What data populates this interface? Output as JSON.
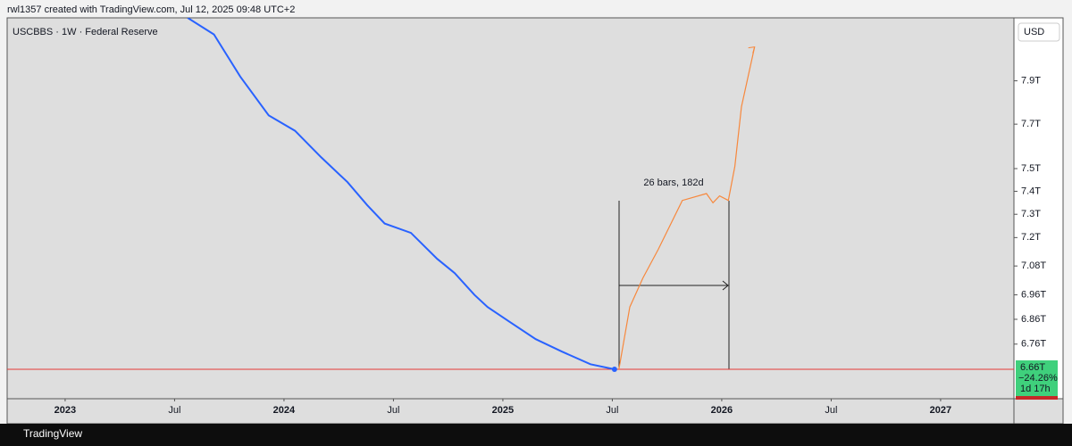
{
  "header": "rwl1357 created with TradingView.com, Jul 12, 2025 09:48 UTC+2",
  "footer": "TradingView",
  "chart_data": {
    "type": "line",
    "title": "USCBBS · 1W · Federal Reserve",
    "currency": "USD",
    "log_scale": true,
    "grid": false,
    "series": [
      {
        "color": "#2962ff",
        "x": [
          2023.56,
          2023.68,
          2023.8,
          2023.93,
          2024.05,
          2024.17,
          2024.29,
          2024.38,
          2024.46,
          2024.58,
          2024.7,
          2024.78,
          2024.87,
          2024.93,
          2025.03,
          2025.15,
          2025.27,
          2025.4,
          2025.51
        ],
        "values": [
          8.2,
          8.12,
          7.92,
          7.74,
          7.67,
          7.55,
          7.44,
          7.34,
          7.26,
          7.22,
          7.11,
          7.05,
          6.96,
          6.91,
          6.85,
          6.78,
          6.73,
          6.68,
          6.66
        ]
      },
      {
        "color": "#f7883d",
        "x": [
          2025.53,
          2025.58,
          2025.64,
          2025.71,
          2025.82,
          2025.93,
          2025.96,
          2025.99,
          2026.03,
          2026.06,
          2026.09,
          2026.15
        ],
        "values": [
          6.66,
          6.91,
          7.03,
          7.15,
          7.36,
          7.39,
          7.35,
          7.38,
          7.36,
          7.51,
          7.78,
          8.06
        ]
      }
    ],
    "ylim": [
      6.545,
      8.2
    ],
    "yticks": [
      {
        "value": 6.76,
        "label": "6.76T"
      },
      {
        "value": 6.86,
        "label": "6.86T"
      },
      {
        "value": 6.96,
        "label": "6.96T"
      },
      {
        "value": 7.08,
        "label": "7.08T"
      },
      {
        "value": 7.2,
        "label": "7.2T"
      },
      {
        "value": 7.3,
        "label": "7.3T"
      },
      {
        "value": 7.4,
        "label": "7.4T"
      },
      {
        "value": 7.5,
        "label": "7.5T"
      },
      {
        "value": 7.7,
        "label": "7.7T"
      },
      {
        "value": 7.9,
        "label": "7.9T"
      }
    ],
    "xlim": [
      2022.735,
      2027.335
    ],
    "xticks": [
      2023,
      {
        "value": 2023.5,
        "label": "Jul"
      },
      2024,
      {
        "value": 2024.5,
        "label": "Jul"
      },
      2025,
      {
        "value": 2025.5,
        "label": "Jul"
      },
      2026,
      {
        "value": 2026.5,
        "label": "Jul"
      },
      2027
    ],
    "last_price": {
      "value": 6.66,
      "label": "6.66T"
    },
    "change_label": "−24.26%",
    "countdown": "1d 17h",
    "annotation": "26 bars, 182d"
  }
}
